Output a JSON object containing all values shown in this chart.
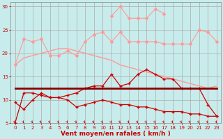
{
  "x": [
    0,
    1,
    2,
    3,
    4,
    5,
    6,
    7,
    8,
    9,
    10,
    11,
    12,
    13,
    14,
    15,
    16,
    17,
    18,
    19,
    20,
    21,
    22,
    23
  ],
  "line_gust_upper": [
    17.5,
    23.0,
    22.5,
    23.0,
    19.5,
    19.5,
    20.5,
    19.5,
    22.5,
    24.0,
    24.5,
    22.5,
    24.5,
    22.5,
    22.5,
    22.5,
    22.5,
    22.0,
    22.0,
    22.0,
    22.0,
    25.0,
    24.5,
    22.5
  ],
  "line_gust_peak": [
    null,
    null,
    null,
    null,
    null,
    null,
    null,
    null,
    null,
    null,
    null,
    28.0,
    30.0,
    27.5,
    27.5,
    27.5,
    29.5,
    28.5,
    null,
    null,
    null,
    null,
    null,
    null
  ],
  "line_flat": [
    12.5,
    12.5,
    12.5,
    12.5,
    12.5,
    12.5,
    12.5,
    12.5,
    12.5,
    12.5,
    12.5,
    12.5,
    12.5,
    12.5,
    12.5,
    12.5,
    12.5,
    12.5,
    12.5,
    12.5,
    12.5,
    12.5,
    12.5,
    12.5
  ],
  "line_mid": [
    5.0,
    11.5,
    11.5,
    11.0,
    10.5,
    10.5,
    11.0,
    11.5,
    12.5,
    13.0,
    13.0,
    15.5,
    13.0,
    13.5,
    15.5,
    16.5,
    15.5,
    14.5,
    14.5,
    12.5,
    12.5,
    12.5,
    9.0,
    6.5
  ],
  "line_low": [
    9.5,
    8.0,
    10.0,
    11.5,
    10.5,
    10.5,
    10.0,
    8.5,
    9.0,
    9.5,
    10.0,
    9.5,
    9.0,
    9.0,
    8.5,
    8.5,
    8.0,
    7.5,
    7.5,
    7.5,
    7.0,
    7.0,
    6.5,
    6.5
  ],
  "line_trend": [
    17.5,
    19.0,
    19.5,
    20.0,
    20.5,
    21.0,
    21.0,
    20.5,
    20.0,
    19.5,
    19.0,
    18.5,
    17.5,
    17.0,
    16.5,
    16.0,
    15.5,
    15.0,
    14.5,
    14.0,
    13.5,
    13.0,
    12.5,
    13.0
  ],
  "bg_color": "#c8ecec",
  "grid_color": "#aaaaaa",
  "color_dark_red": "#cc0000",
  "color_flat_red": "#880000",
  "color_light_pink": "#ff9999",
  "xlabel": "Vent moyen/en rafales ( km/h )",
  "xlabel_color": "#cc0000",
  "tick_color": "#cc0000",
  "ylim": [
    5,
    31
  ],
  "xlim": [
    -0.5,
    23.5
  ],
  "yticks": [
    5,
    10,
    15,
    20,
    25,
    30
  ],
  "xticks": [
    0,
    1,
    2,
    3,
    4,
    5,
    6,
    7,
    8,
    9,
    10,
    11,
    12,
    13,
    14,
    15,
    16,
    17,
    18,
    19,
    20,
    21,
    22,
    23
  ]
}
